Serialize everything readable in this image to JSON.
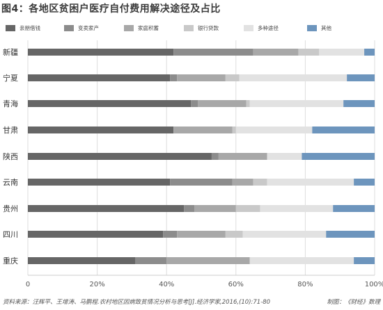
{
  "title": "图4：各地区贫困户医疗自付费用解决途径及占比",
  "source_note": "资料来源：汪辉平、王增涛、马鹏程.农村地区因病致贫情况分析与思考[J].经济学家,2016,(10):71-80",
  "credit": "制图：《财经》数理",
  "chart_data": {
    "type": "bar",
    "orientation": "horizontal",
    "stacked": true,
    "normalized": true,
    "categories": [
      "新疆",
      "宁夏",
      "青海",
      "甘肃",
      "陕西",
      "云南",
      "贵州",
      "四川",
      "重庆"
    ],
    "series": [
      {
        "name": "亲朋借钱",
        "color": "#666666",
        "values": [
          42,
          41,
          47,
          42,
          53,
          41,
          45,
          39,
          31
        ]
      },
      {
        "name": "变卖家产",
        "color": "#8c8c8c",
        "values": [
          23,
          2,
          2,
          0,
          2,
          18,
          3,
          4,
          9
        ]
      },
      {
        "name": "家庭积蓄",
        "color": "#a8a8a8",
        "values": [
          13,
          14,
          14,
          17,
          14,
          6,
          12,
          14,
          24
        ]
      },
      {
        "name": "银行贷款",
        "color": "#c9c9c9",
        "values": [
          6,
          4,
          1,
          1,
          0,
          4,
          7,
          5,
          0
        ]
      },
      {
        "name": "多种途径",
        "color": "#e2e2e2",
        "values": [
          13,
          31,
          27,
          22,
          10,
          25,
          21,
          24,
          30
        ]
      },
      {
        "name": "其他",
        "color": "#6d95bd",
        "values": [
          3,
          8,
          9,
          18,
          21,
          6,
          12,
          14,
          6
        ]
      }
    ],
    "xlim": [
      0,
      100
    ],
    "x_ticks": [
      "0",
      "20%",
      "40%",
      "60%",
      "80%",
      "100%"
    ],
    "grid": true,
    "legend_position": "top"
  }
}
